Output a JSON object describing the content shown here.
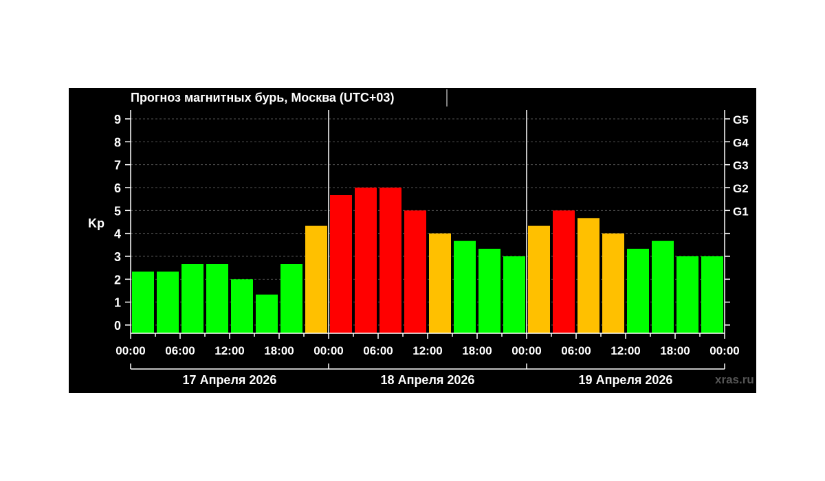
{
  "chart_data": {
    "type": "bar",
    "title": "Прогноз магнитных бурь, Москва (UTC+03)",
    "ylabel": "Kp",
    "ylim": [
      0,
      9
    ],
    "y_ticks": [
      "0",
      "1",
      "2",
      "3",
      "4",
      "5",
      "6",
      "7",
      "8",
      "9"
    ],
    "right_axis": [
      {
        "label": "G1",
        "kp": 5
      },
      {
        "label": "G2",
        "kp": 6
      },
      {
        "label": "G3",
        "kp": 7
      },
      {
        "label": "G4",
        "kp": 8
      },
      {
        "label": "G5",
        "kp": 9
      }
    ],
    "x_tick_labels": [
      "00:00",
      "06:00",
      "12:00",
      "18:00",
      "00:00",
      "06:00",
      "12:00",
      "18:00",
      "00:00",
      "06:00",
      "12:00",
      "18:00",
      "00:00"
    ],
    "days": [
      "17 Апреля 2026",
      "18 Апреля 2026",
      "19 Апреля 2026"
    ],
    "values": [
      2.33,
      2.33,
      2.67,
      2.67,
      2.0,
      1.33,
      2.67,
      4.33,
      5.67,
      6.0,
      6.0,
      5.0,
      4.0,
      3.67,
      3.33,
      3.0,
      4.33,
      5.0,
      4.67,
      4.0,
      3.33,
      3.67,
      3.0,
      3.0
    ],
    "colors": {
      "quiet": "#00ff00",
      "active": "#ffc000",
      "storm": "#ff0000",
      "background": "#000000"
    },
    "grid": true,
    "watermark": "xras.ru"
  }
}
